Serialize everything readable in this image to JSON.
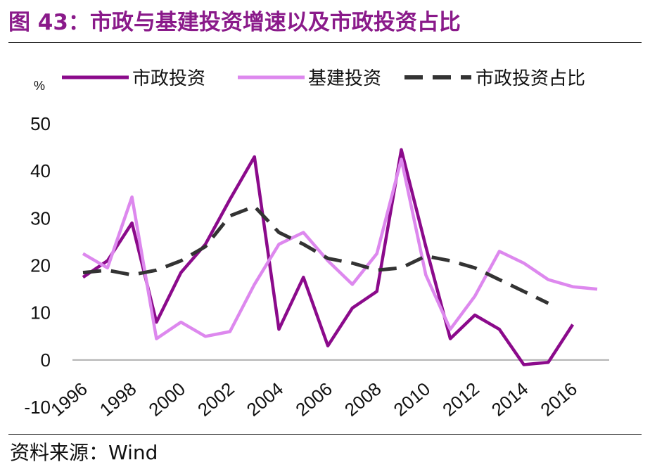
{
  "figure": {
    "title": "图 43：市政与基建投资增速以及市政投资占比",
    "source": "资料来源：Wind"
  },
  "chart_data": {
    "type": "line",
    "title": "",
    "ylabel": "%",
    "ylim": [
      -10,
      50
    ],
    "yticks": [
      -10,
      0,
      10,
      20,
      30,
      40,
      50
    ],
    "x": [
      1996,
      1997,
      1998,
      1999,
      2000,
      2001,
      2002,
      2003,
      2004,
      2005,
      2006,
      2007,
      2008,
      2009,
      2010,
      2011,
      2012,
      2013,
      2014,
      2015,
      2016,
      2017
    ],
    "x_tick_labels": [
      "1996",
      "1998",
      "2000",
      "2002",
      "2004",
      "2006",
      "2008",
      "2010",
      "2012",
      "2014",
      "2016"
    ],
    "grid": false,
    "legend_position": "top",
    "series": [
      {
        "name": "市政投资",
        "color": "#8b0a8b",
        "style": "solid",
        "values": [
          17.5,
          21,
          29,
          8,
          18.5,
          24.5,
          34,
          43,
          6.5,
          17.5,
          3,
          11,
          14.5,
          44.5,
          24,
          4.5,
          9.5,
          6.5,
          -1,
          -0.5,
          7.5,
          null
        ]
      },
      {
        "name": "基建投资",
        "color": "#dd88ee",
        "style": "solid",
        "values": [
          22.5,
          19.5,
          34.5,
          4.5,
          8,
          5,
          6,
          16,
          24.5,
          27,
          21,
          16,
          22.5,
          42.5,
          18,
          6.5,
          13.5,
          23,
          20.5,
          17,
          15.5,
          15
        ]
      },
      {
        "name": "市政投资占比",
        "color": "#333333",
        "style": "dashed",
        "values": [
          18.5,
          19,
          18,
          19,
          21,
          24,
          30.5,
          32.5,
          27,
          24.5,
          21.5,
          20.5,
          19,
          19.5,
          22,
          21,
          19.5,
          17,
          14.5,
          12,
          null,
          null
        ]
      }
    ]
  }
}
